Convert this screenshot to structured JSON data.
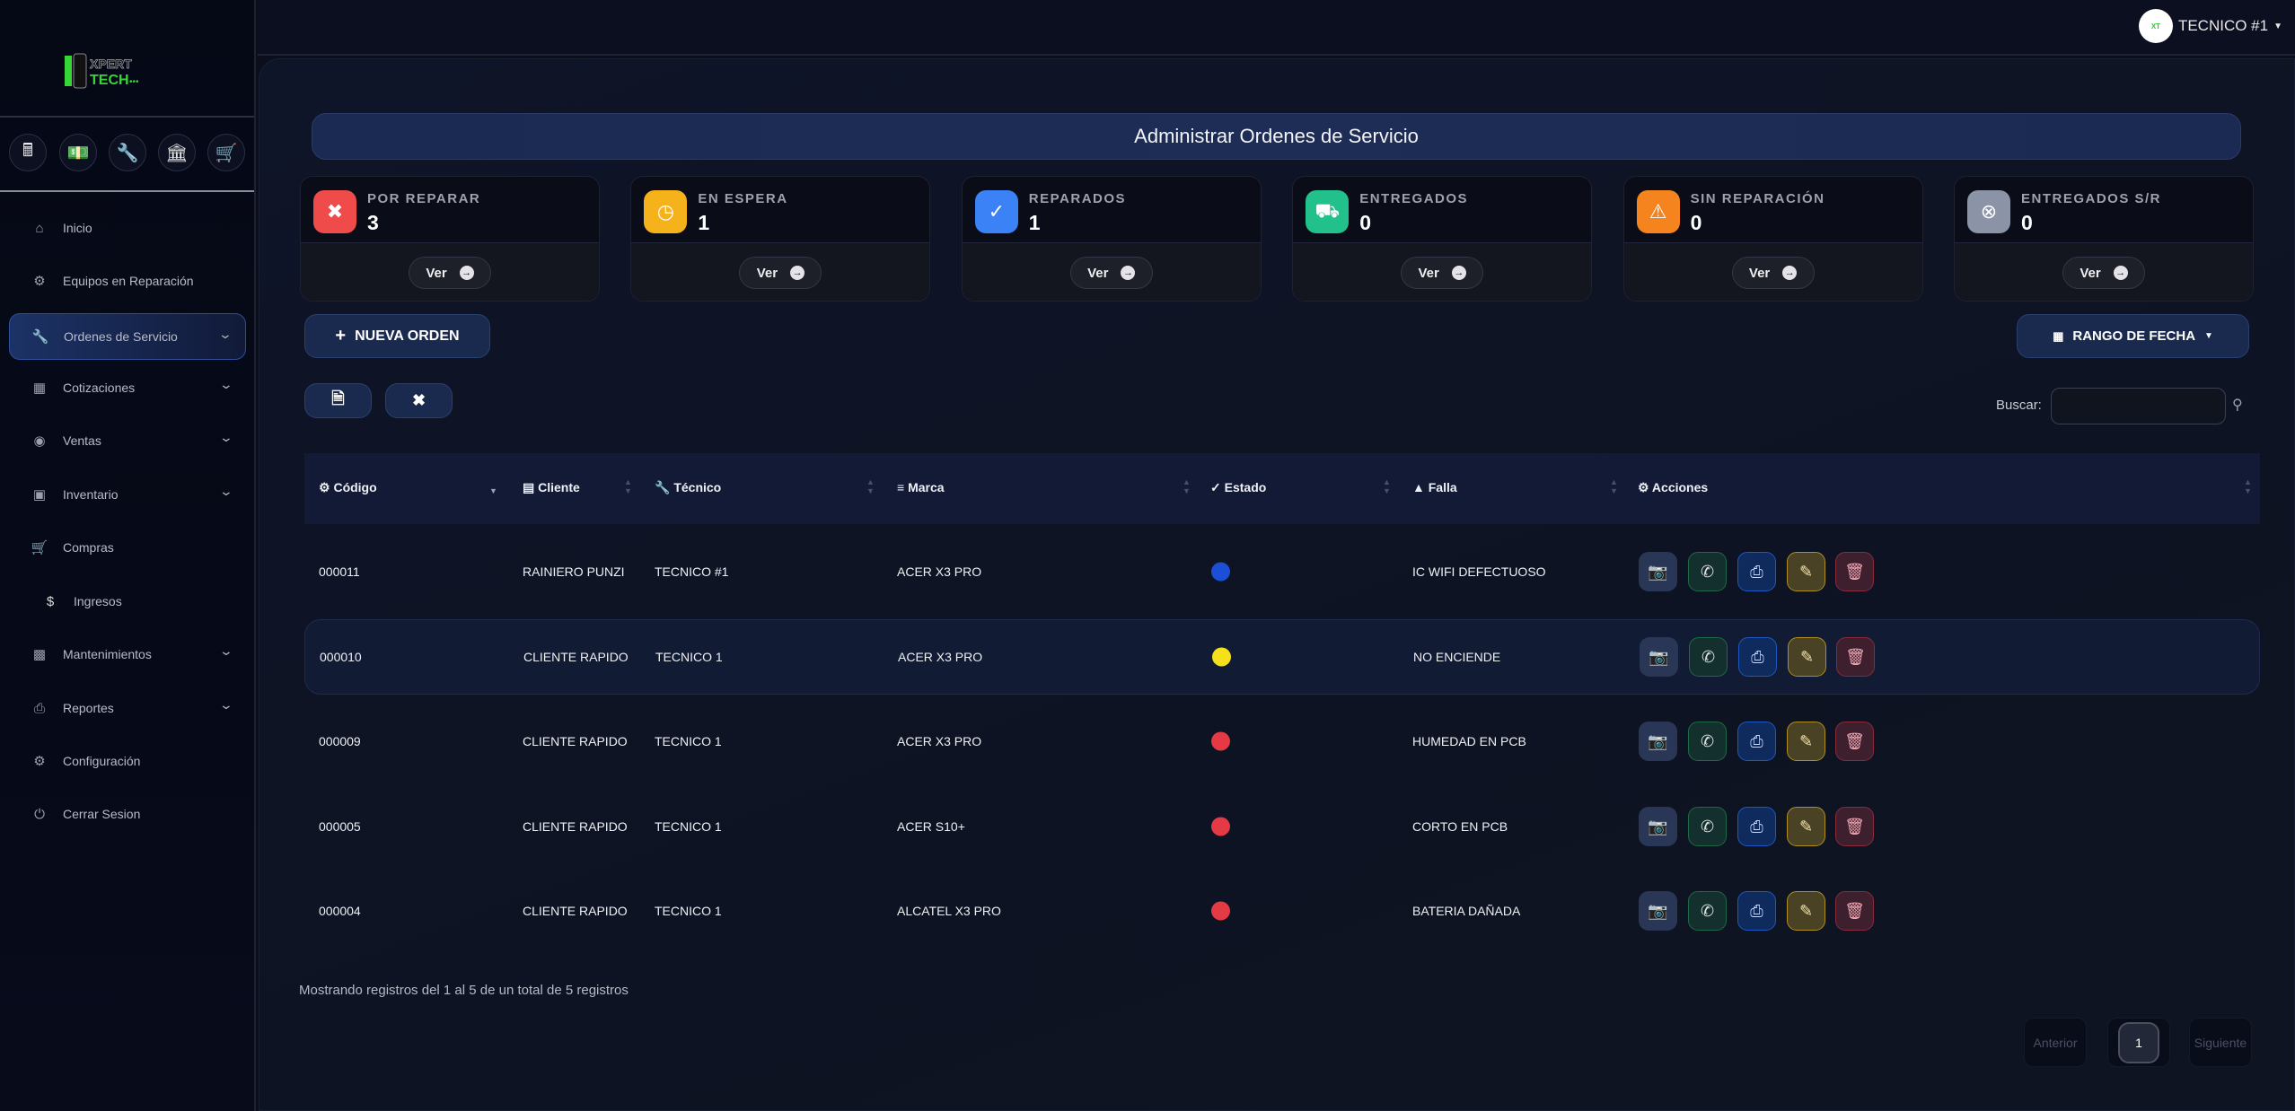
{
  "brand": {
    "logo_text_1": "XPERT",
    "logo_text_2": "TECH"
  },
  "user": {
    "name": "TECNICO #1"
  },
  "quick_icons": [
    "calculator-icon",
    "money-icon",
    "wrench-icon",
    "bank-icon",
    "dolly-icon"
  ],
  "sidebar": {
    "items": [
      {
        "label": "Inicio",
        "icon": "home-icon"
      },
      {
        "label": "Equipos en Reparación",
        "icon": "gears-icon"
      },
      {
        "label": "Ordenes de Servicio",
        "icon": "wrench-icon",
        "active": true,
        "chevron": true
      },
      {
        "label": "Cotizaciones",
        "icon": "calculator-icon",
        "chevron": true
      },
      {
        "label": "Ventas",
        "icon": "money-icon",
        "chevron": true
      },
      {
        "label": "Inventario",
        "icon": "dolly-icon",
        "chevron": true
      },
      {
        "label": "Compras",
        "icon": "cart-icon"
      },
      {
        "label": "Ingresos",
        "icon": "dollar-icon"
      },
      {
        "label": "Mantenimientos",
        "icon": "briefcase-icon",
        "chevron": true
      },
      {
        "label": "Reportes",
        "icon": "print-icon",
        "chevron": true
      },
      {
        "label": "Configuración",
        "icon": "gear-icon"
      },
      {
        "label": "Cerrar Sesion",
        "icon": "power-icon"
      }
    ]
  },
  "main": {
    "title": "Administrar Ordenes de Servicio",
    "cards": [
      {
        "label": "POR REPARAR",
        "value": "3",
        "button": "Ver",
        "color": "#ef4b4b"
      },
      {
        "label": "EN ESPERA",
        "value": "1",
        "button": "Ver",
        "color": "#f5b21a"
      },
      {
        "label": "REPARADOS",
        "value": "1",
        "button": "Ver",
        "color": "#3b82f6"
      },
      {
        "label": "ENTREGADOS",
        "value": "0",
        "button": "Ver",
        "color": "#22c08a"
      },
      {
        "label": "SIN REPARACIÓN",
        "value": "0",
        "button": "Ver",
        "color": "#f5841f"
      },
      {
        "label": "ENTREGADOS S/R",
        "value": "0",
        "button": "Ver",
        "color": "#8b93a6"
      }
    ],
    "new_order": "NUEVA ORDEN",
    "date_range": "RANGO DE FECHA",
    "search_label": "Buscar:",
    "search_value": "",
    "table": {
      "headers": [
        "Código",
        "Cliente",
        "Técnico",
        "Marca",
        "Estado",
        "Falla",
        "Acciones"
      ],
      "rows": [
        {
          "codigo": "000011",
          "cliente": "RAINIERO PUNZI",
          "tecnico": "TECNICO #1",
          "marca": "ACER X3 PRO",
          "estado_color": "#1d4ed8",
          "falla": "IC WIFI DEFECTUOSO"
        },
        {
          "codigo": "000010",
          "cliente": "CLIENTE RAPIDO",
          "tecnico": "TECNICO 1",
          "marca": "ACER X3 PRO",
          "estado_color": "#f5e11a",
          "falla": "NO ENCIENDE"
        },
        {
          "codigo": "000009",
          "cliente": "CLIENTE RAPIDO",
          "tecnico": "TECNICO 1",
          "marca": "ACER X3 PRO",
          "estado_color": "#e53945",
          "falla": "HUMEDAD EN PCB"
        },
        {
          "codigo": "000005",
          "cliente": "CLIENTE RAPIDO",
          "tecnico": "TECNICO 1",
          "marca": "ACER S10+",
          "estado_color": "#e53945",
          "falla": "CORTO EN PCB"
        },
        {
          "codigo": "000004",
          "cliente": "CLIENTE RAPIDO",
          "tecnico": "TECNICO 1",
          "marca": "ALCATEL X3 PRO",
          "estado_color": "#e53945",
          "falla": "BATERIA DAÑADA"
        }
      ]
    },
    "info": "Mostrando registros del 1 al 5 de un total de 5 registros",
    "pagination": {
      "prev": "Anterior",
      "current": "1",
      "next": "Siguiente"
    }
  }
}
